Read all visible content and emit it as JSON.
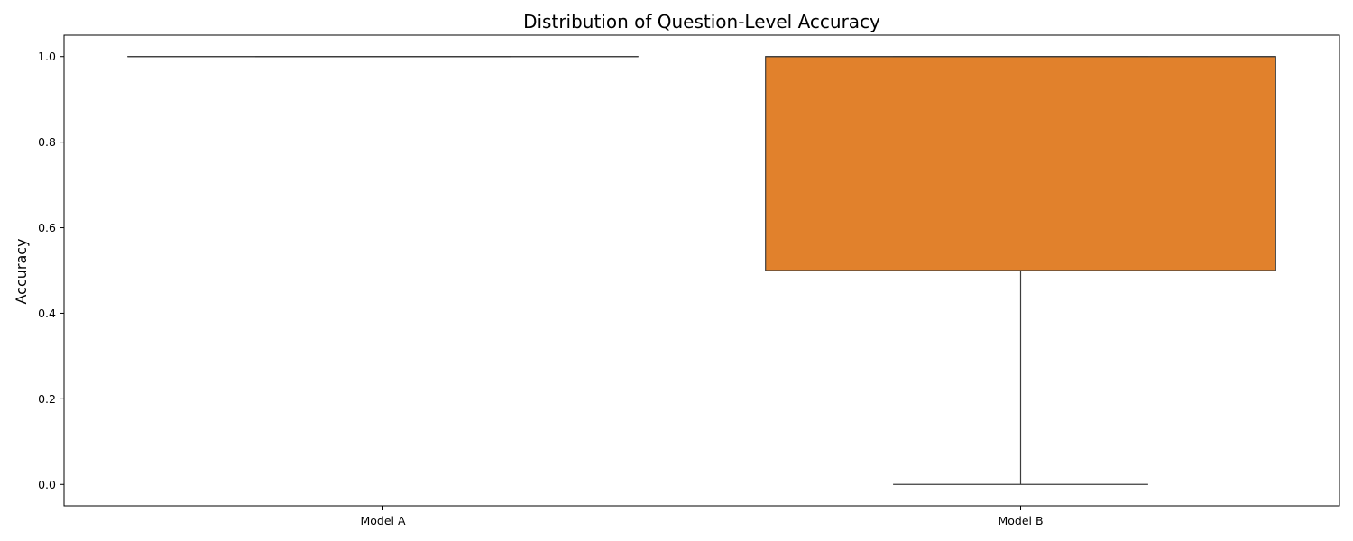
{
  "chart_data": {
    "type": "box",
    "title": "Distribution of Question-Level Accuracy",
    "xlabel": "",
    "ylabel": "Accuracy",
    "ylim": [
      -0.05,
      1.05
    ],
    "yticks": [
      "0.0",
      "0.2",
      "0.4",
      "0.6",
      "0.8",
      "1.0"
    ],
    "ytick_values": [
      0.0,
      0.2,
      0.4,
      0.6,
      0.8,
      1.0
    ],
    "categories": [
      "Model A",
      "Model B"
    ],
    "grid": false,
    "boxes": [
      {
        "category": "Model A",
        "whisker_low": 1.0,
        "q1": 1.0,
        "median": 1.0,
        "q3": 1.0,
        "whisker_high": 1.0,
        "color": "#1f77b4"
      },
      {
        "category": "Model B",
        "whisker_low": 0.0,
        "q1": 0.5,
        "median": 1.0,
        "q3": 1.0,
        "whisker_high": 1.0,
        "color": "#e1812c"
      }
    ]
  }
}
